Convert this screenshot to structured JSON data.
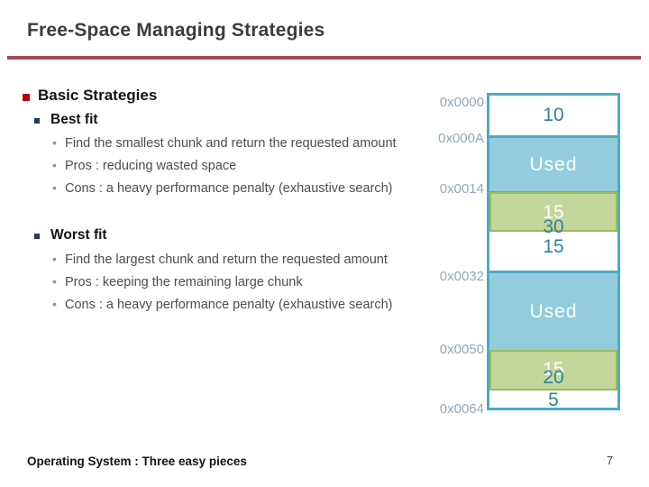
{
  "slide": {
    "title": "Free-Space Managing Strategies",
    "footer": "Operating System : Three easy pieces",
    "page_number": "7"
  },
  "content": {
    "heading": "Basic Strategies",
    "sections": [
      {
        "heading": "Best fit",
        "bullets": [
          "Find the smallest chunk and return the requested amount",
          "Pros : reducing wasted space",
          "Cons : a heavy performance penalty (exhaustive search)"
        ]
      },
      {
        "heading": "Worst fit",
        "bullets": [
          "Find the largest chunk and return the requested amount",
          "Pros : keeping the remaining large chunk",
          "Cons : a heavy performance penalty (exhaustive search)"
        ]
      }
    ],
    "bullet_glyph": "•"
  },
  "diagram": {
    "addresses": [
      "0x0000",
      "0x000A",
      "0x0014",
      "0x0032",
      "0x0050",
      "0x0064"
    ],
    "blocks": [
      {
        "type": "free",
        "label": "10"
      },
      {
        "type": "used",
        "label": "Used"
      },
      {
        "type": "free-split",
        "allocated": "15",
        "original": "30",
        "remaining": "15"
      },
      {
        "type": "used",
        "label": "Used"
      },
      {
        "type": "free-split",
        "allocated": "15",
        "original": "20",
        "remaining": "5"
      }
    ],
    "colors": {
      "border_teal": "#4BACC6",
      "used_fill": "#93CDDD",
      "allocated_fill": "#C3D69B",
      "allocated_border": "#9BBB59",
      "number_text": "#31849B",
      "address_text": "#92A8BB"
    }
  },
  "accents": {
    "title_rule": "#A14D52",
    "level1_bullet": "#C00000",
    "level2_bullet": "#1F3A5F",
    "level3_bullet": "#7C98B3"
  }
}
